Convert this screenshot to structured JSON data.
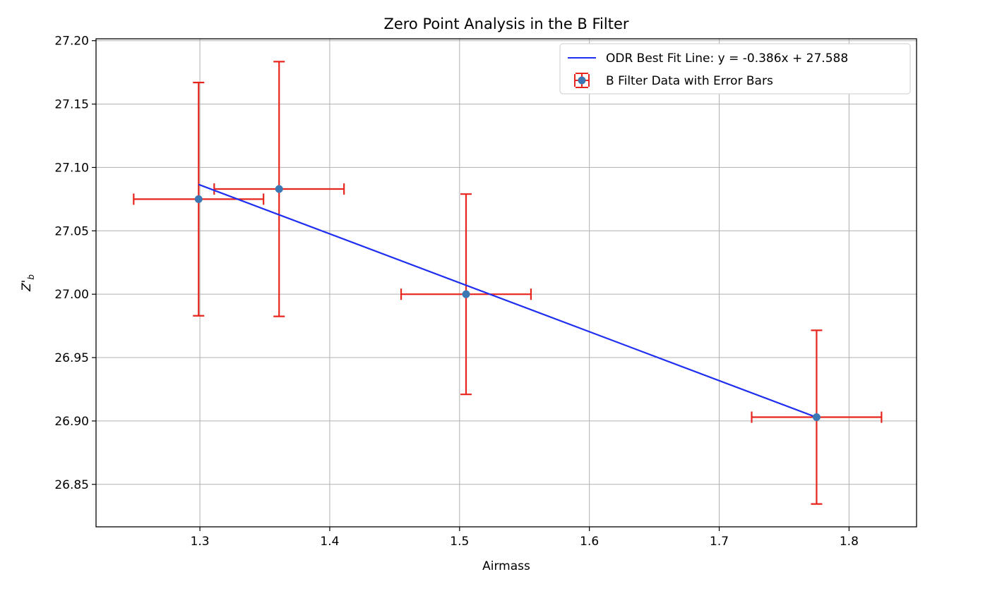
{
  "chart_data": {
    "type": "scatter",
    "title": "Zero Point Analysis in the B Filter",
    "xlabel": "Airmass",
    "ylabel_main": "Z'",
    "ylabel_sub": "b",
    "xlim": [
      1.22,
      1.852
    ],
    "ylim": [
      26.8165,
      27.2015
    ],
    "xticks": [
      1.3,
      1.4,
      1.5,
      1.6,
      1.7,
      1.8
    ],
    "xtick_labels": [
      "1.3",
      "1.4",
      "1.5",
      "1.6",
      "1.7",
      "1.8"
    ],
    "yticks": [
      26.85,
      26.9,
      26.95,
      27.0,
      27.05,
      27.1,
      27.15,
      27.2
    ],
    "ytick_labels": [
      "26.85",
      "26.90",
      "26.95",
      "27.00",
      "27.05",
      "27.10",
      "27.15",
      "27.20"
    ],
    "grid": true,
    "legend_position": "upper right",
    "series": [
      {
        "name": "B Filter Data with Error Bars",
        "kind": "errorbar",
        "marker_color": "#3c78b4",
        "error_color": "#e8251c",
        "points": [
          {
            "x": 1.299,
            "y": 27.075,
            "xerr": 0.05,
            "yerr": 0.092
          },
          {
            "x": 1.361,
            "y": 27.083,
            "xerr": 0.05,
            "yerr": 0.1005
          },
          {
            "x": 1.505,
            "y": 27.0,
            "xerr": 0.05,
            "yerr": 0.079
          },
          {
            "x": 1.775,
            "y": 26.903,
            "xerr": 0.05,
            "yerr": 0.0685
          }
        ]
      },
      {
        "name": "ODR Best Fit Line: y = -0.386x + 27.588",
        "kind": "line",
        "color": "#1f2ff2",
        "slope": -0.386,
        "intercept": 27.588,
        "x_range": [
          1.299,
          1.775
        ]
      }
    ]
  }
}
